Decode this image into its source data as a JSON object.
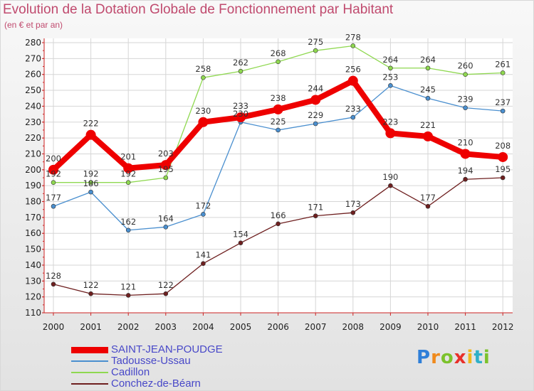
{
  "header": {
    "title": "Evolution de la Dotation Globale de Fonctionnement par Habitant",
    "subtitle": "(en € et par an)"
  },
  "logo": {
    "letters": [
      {
        "char": "P",
        "color": "#2f7fd8"
      },
      {
        "char": "r",
        "color": "#f08a1c"
      },
      {
        "char": "o",
        "color": "#7cc22c"
      },
      {
        "char": "x",
        "color": "#e8302a"
      },
      {
        "char": "i",
        "color": "#f0b81c"
      },
      {
        "char": "t",
        "color": "#2fb0c8"
      },
      {
        "char": "i",
        "color": "#7cc22c"
      }
    ]
  },
  "chart_data": {
    "type": "line",
    "title": "Evolution de la Dotation Globale de Fonctionnement par Habitant",
    "subtitle": "(en € et par an)",
    "x": [
      "2000",
      "2001",
      "2002",
      "2003",
      "2004",
      "2005",
      "2006",
      "2007",
      "2008",
      "2009",
      "2010",
      "2011",
      "2012"
    ],
    "ylim": [
      110,
      280
    ],
    "yticks": [
      110,
      120,
      130,
      140,
      150,
      160,
      170,
      180,
      190,
      200,
      210,
      220,
      230,
      240,
      250,
      260,
      270,
      280
    ],
    "grid": true,
    "legend_position": "bottom-left",
    "series": [
      {
        "name": "SAINT-JEAN-POUDGE",
        "color": "#ee0000",
        "width": 8,
        "marker": 7,
        "values": [
          200,
          222,
          201,
          203,
          230,
          233,
          238,
          244,
          256,
          223,
          221,
          210,
          208
        ]
      },
      {
        "name": "Tadousse-Ussau",
        "color": "#4a8fcf",
        "width": 1.3,
        "marker": 3,
        "values": [
          177,
          186,
          162,
          164,
          172,
          230,
          225,
          229,
          233,
          253,
          245,
          239,
          237
        ]
      },
      {
        "name": "Cadillon",
        "color": "#8fd850",
        "width": 1.3,
        "marker": 3,
        "values": [
          192,
          192,
          192,
          195,
          258,
          262,
          268,
          275,
          278,
          264,
          264,
          260,
          261
        ]
      },
      {
        "name": "Conchez-de-Béarn",
        "color": "#6e1f1f",
        "width": 1.3,
        "marker": 3,
        "values": [
          128,
          122,
          121,
          122,
          141,
          154,
          166,
          171,
          173,
          190,
          177,
          194,
          195
        ]
      }
    ]
  }
}
